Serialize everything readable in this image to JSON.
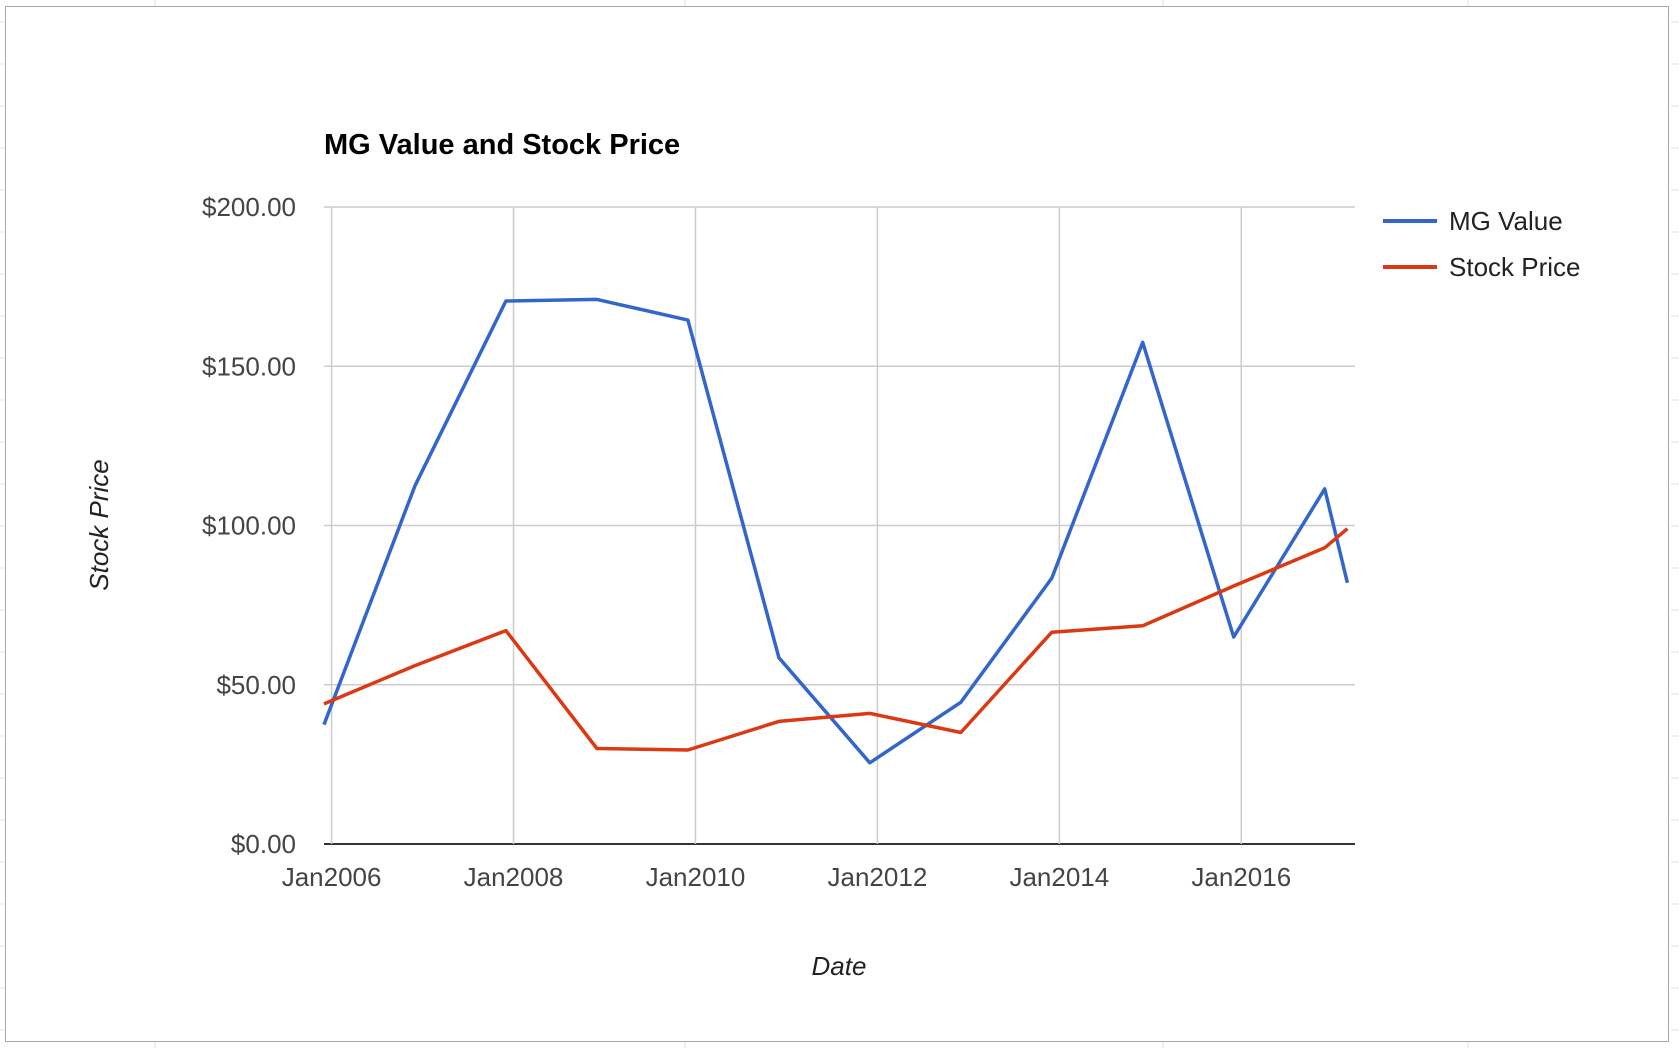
{
  "chart_data": {
    "type": "line",
    "title": "MG Value and Stock Price",
    "xlabel": "Date",
    "ylabel": "Stock Price",
    "x_ticks": [
      "Jan2006",
      "Jan2008",
      "Jan2010",
      "Jan2012",
      "Jan2014",
      "Jan2016"
    ],
    "y_ticks": [
      "$0.00",
      "$50.00",
      "$100.00",
      "$150.00",
      "$200.00"
    ],
    "xlim": [
      "2005-12",
      "2017-04"
    ],
    "ylim": [
      0,
      200
    ],
    "grid": true,
    "legend_position": "right",
    "x": [
      "2005-12",
      "2006-12",
      "2007-12",
      "2008-12",
      "2009-12",
      "2010-12",
      "2011-12",
      "2012-12",
      "2013-12",
      "2014-12",
      "2015-12",
      "2016-12",
      "2017-03"
    ],
    "series": [
      {
        "name": "MG Value",
        "color": "#3366cc",
        "values": [
          37.5,
          112.5,
          170.5,
          171.0,
          164.5,
          58.5,
          25.5,
          44.5,
          83.5,
          157.5,
          65.0,
          111.5,
          82.0
        ]
      },
      {
        "name": "Stock Price",
        "color": "#dc3912",
        "values": [
          44.0,
          56.0,
          67.0,
          30.0,
          29.5,
          38.5,
          41.0,
          35.0,
          66.5,
          68.5,
          81.0,
          93.0,
          99.0
        ]
      }
    ]
  }
}
